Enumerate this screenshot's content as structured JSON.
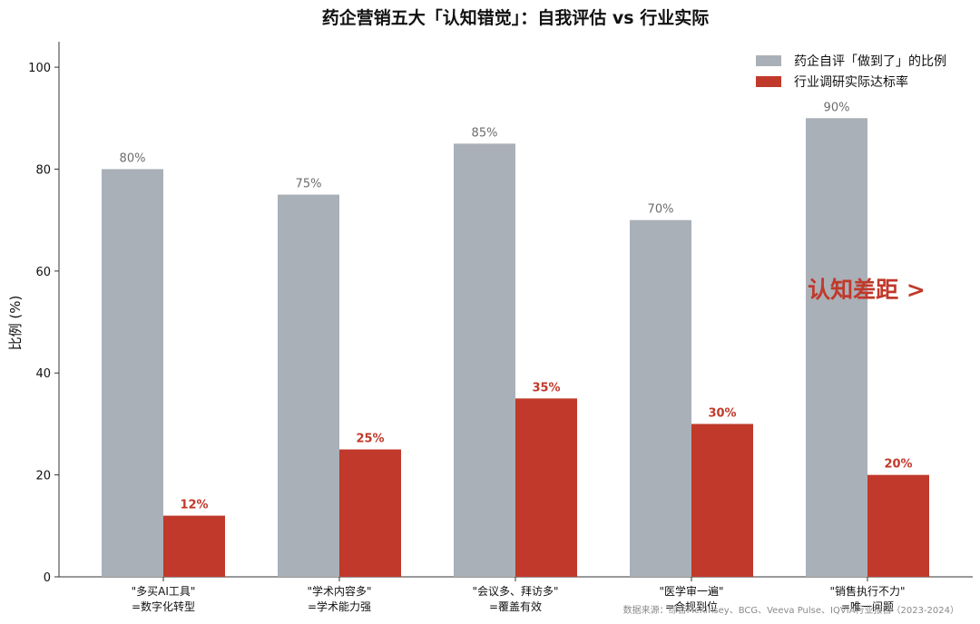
{
  "chart_data": {
    "type": "bar",
    "title": "药企营销五大「认知错觉」：自我评估 vs 行业实际",
    "ylabel": "比例 (%)",
    "xlabel": "",
    "ylim": [
      0,
      105
    ],
    "yticks": [
      0,
      20,
      40,
      60,
      80,
      100
    ],
    "categories": [
      {
        "line1": "\"多买AI工具\"",
        "line2": "=数字化转型"
      },
      {
        "line1": "\"学术内容多\"",
        "line2": "=学术能力强"
      },
      {
        "line1": "\"会议多、拜访多\"",
        "line2": "=覆盖有效"
      },
      {
        "line1": "\"医学审一遍\"",
        "line2": "=合规到位"
      },
      {
        "line1": "\"销售执行不力\"",
        "line2": "=唯一问题"
      }
    ],
    "series": [
      {
        "name": "药企自评「做到了」的比例",
        "color": "#aab0b7",
        "values": [
          80,
          75,
          85,
          70,
          90
        ],
        "labels": [
          "80%",
          "75%",
          "85%",
          "70%",
          "90%"
        ]
      },
      {
        "name": "行业调研实际达标率",
        "color": "#c0392b",
        "values": [
          12,
          25,
          35,
          30,
          20
        ],
        "labels": [
          "12%",
          "25%",
          "35%",
          "30%",
          "20%"
        ]
      }
    ],
    "legend_position": "top-right",
    "grid": false,
    "annotation": "认知差距 >",
    "source": "数据来源：综合McKinsey、BCG、Veeva Pulse、IQVIA行业报告（2023-2024）"
  }
}
